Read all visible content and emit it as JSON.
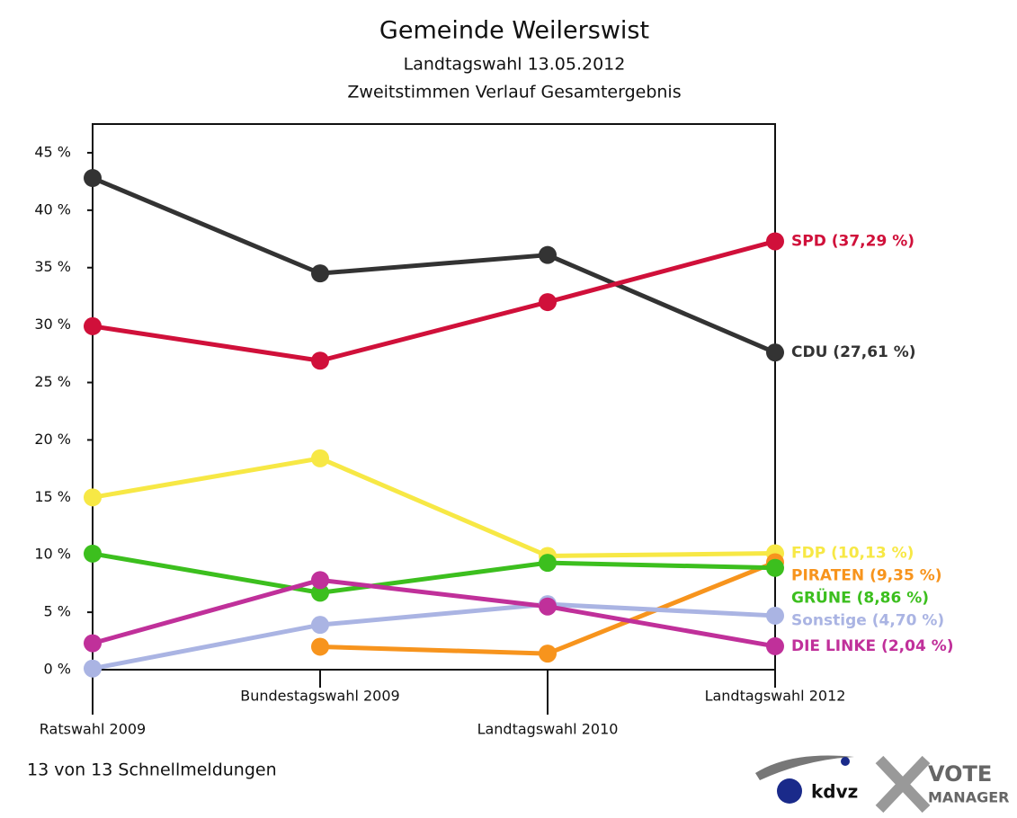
{
  "chart_data": {
    "type": "line",
    "title": "Gemeinde Weilerswist",
    "subtitle": "Landtagswahl 13.05.2012",
    "subtitle2": "Zweitstimmen Verlauf Gesamtergebnis",
    "categories": [
      "Ratswahl 2009",
      "Bundestagswahl 2009",
      "Landtagswahl 2010",
      "Landtagswahl 2012"
    ],
    "ylim": [
      0,
      47.5
    ],
    "yticks": [
      {
        "value": 0,
        "label": "0 %"
      },
      {
        "value": 5,
        "label": "5 %"
      },
      {
        "value": 10,
        "label": "10 %"
      },
      {
        "value": 15,
        "label": "15 %"
      },
      {
        "value": 20,
        "label": "20 %"
      },
      {
        "value": 25,
        "label": "25 %"
      },
      {
        "value": 30,
        "label": "30 %"
      },
      {
        "value": 35,
        "label": "35 %"
      },
      {
        "value": 40,
        "label": "40 %"
      },
      {
        "value": 45,
        "label": "45 %"
      }
    ],
    "series": [
      {
        "name": "CDU",
        "color": "#333333",
        "values": [
          42.8,
          34.5,
          36.1,
          27.61
        ],
        "value_labels": [
          null,
          null,
          null,
          "CDU (27,61 %)"
        ]
      },
      {
        "name": "SPD",
        "color": "#d0103a",
        "values": [
          29.9,
          26.9,
          32.0,
          37.29
        ],
        "value_labels": [
          null,
          null,
          null,
          "SPD (37,29 %)"
        ]
      },
      {
        "name": "FDP",
        "color": "#f7e845",
        "values": [
          15.0,
          18.4,
          9.9,
          10.13
        ],
        "value_labels": [
          null,
          null,
          null,
          "FDP (10,13 %)"
        ]
      },
      {
        "name": "PIRATEN",
        "color": "#f7941d",
        "values": [
          null,
          2.0,
          1.4,
          9.35
        ],
        "value_labels": [
          null,
          null,
          null,
          "PIRATEN (9,35 %)"
        ]
      },
      {
        "name": "GRÜNE",
        "color": "#3cbf1e",
        "values": [
          10.1,
          6.7,
          9.3,
          8.86
        ],
        "value_labels": [
          null,
          null,
          null,
          "GRÜNE (8,86 %)"
        ]
      },
      {
        "name": "Sonstige",
        "color": "#aab4e3",
        "values": [
          0.1,
          3.9,
          5.7,
          4.7
        ],
        "value_labels": [
          null,
          null,
          null,
          "Sonstige (4,70 %)"
        ]
      },
      {
        "name": "DIE LINKE",
        "color": "#c0309a",
        "values": [
          2.3,
          7.8,
          5.5,
          2.04
        ],
        "value_labels": [
          null,
          null,
          null,
          "DIE LINKE (2,04 %)"
        ]
      }
    ],
    "footer": "13 von 13 Schnellmeldungen",
    "logos": [
      "kdvz",
      "VOTE",
      "MANAGER"
    ]
  }
}
